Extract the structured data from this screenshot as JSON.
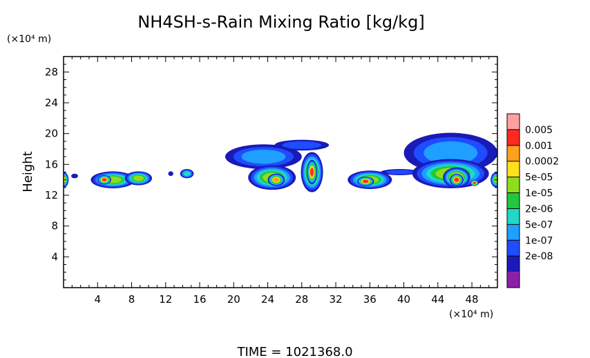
{
  "chart_data": {
    "type": "heatmap",
    "title": "NH4SH-s-Rain Mixing Ratio [kg/kg]",
    "xlabel": "",
    "ylabel": "Height",
    "x_unit_label": "(×10⁴ m)",
    "y_unit_label": "(×10⁴ m)",
    "xlim": [
      0,
      51
    ],
    "ylim": [
      0,
      30
    ],
    "x_ticks": [
      4,
      8,
      12,
      16,
      20,
      24,
      28,
      32,
      36,
      40,
      44,
      48
    ],
    "y_ticks": [
      4,
      8,
      12,
      16,
      20,
      24,
      28
    ],
    "colorbar": {
      "labels": [
        "0.005",
        "0.001",
        "0.0002",
        "5e-05",
        "1e-05",
        "2e-06",
        "5e-07",
        "1e-07",
        "2e-08"
      ],
      "colors": [
        "#8b1fa8",
        "#1a1ab8",
        "#1f4cff",
        "#1f9fff",
        "#1fd8c8",
        "#1fc83c",
        "#8fdc1f",
        "#ffe01f",
        "#ffa01f",
        "#ff2a1f",
        "#ffa0a0"
      ]
    },
    "cells": [
      {
        "x": 0,
        "y": 14.0,
        "rx": 0.6,
        "ry": 1.0,
        "level": 7
      },
      {
        "x": 1.3,
        "y": 14.5,
        "rx": 0.4,
        "ry": 0.3,
        "level": 1
      },
      {
        "x": 5.8,
        "y": 14.0,
        "rx": 2.6,
        "ry": 1.1,
        "level": 6
      },
      {
        "x": 8.8,
        "y": 14.2,
        "rx": 1.6,
        "ry": 0.9,
        "level": 6
      },
      {
        "x": 4.8,
        "y": 14.0,
        "rx": 0.8,
        "ry": 0.6,
        "level": 9
      },
      {
        "x": 14.5,
        "y": 14.8,
        "rx": 0.8,
        "ry": 0.6,
        "level": 4
      },
      {
        "x": 12.6,
        "y": 14.8,
        "rx": 0.3,
        "ry": 0.3,
        "level": 1
      },
      {
        "x": 23.5,
        "y": 17.0,
        "rx": 4.5,
        "ry": 1.6,
        "level": 3
      },
      {
        "x": 28.0,
        "y": 18.5,
        "rx": 3.2,
        "ry": 0.7,
        "level": 2
      },
      {
        "x": 24.5,
        "y": 14.3,
        "rx": 2.8,
        "ry": 1.6,
        "level": 6
      },
      {
        "x": 25.0,
        "y": 14.0,
        "rx": 1.0,
        "ry": 0.8,
        "level": 8
      },
      {
        "x": 29.2,
        "y": 15.0,
        "rx": 1.3,
        "ry": 2.6,
        "level": 7
      },
      {
        "x": 29.2,
        "y": 15.0,
        "rx": 0.6,
        "ry": 1.6,
        "level": 9
      },
      {
        "x": 36.0,
        "y": 14.0,
        "rx": 2.6,
        "ry": 1.2,
        "level": 6
      },
      {
        "x": 35.5,
        "y": 13.8,
        "rx": 1.0,
        "ry": 0.6,
        "level": 9
      },
      {
        "x": 39.5,
        "y": 15.0,
        "rx": 2.2,
        "ry": 0.4,
        "level": 2
      },
      {
        "x": 45.5,
        "y": 17.5,
        "rx": 5.5,
        "ry": 2.6,
        "level": 3
      },
      {
        "x": 45.5,
        "y": 14.8,
        "rx": 4.5,
        "ry": 1.9,
        "level": 6
      },
      {
        "x": 46.2,
        "y": 14.3,
        "rx": 1.6,
        "ry": 1.3,
        "level": 8
      },
      {
        "x": 46.2,
        "y": 14.0,
        "rx": 0.8,
        "ry": 0.8,
        "level": 9
      },
      {
        "x": 48.3,
        "y": 13.6,
        "rx": 0.5,
        "ry": 0.4,
        "level": 9
      },
      {
        "x": 50.9,
        "y": 14.0,
        "rx": 0.7,
        "ry": 1.0,
        "level": 6
      }
    ]
  },
  "time_label": "TIME = 1021368.0"
}
